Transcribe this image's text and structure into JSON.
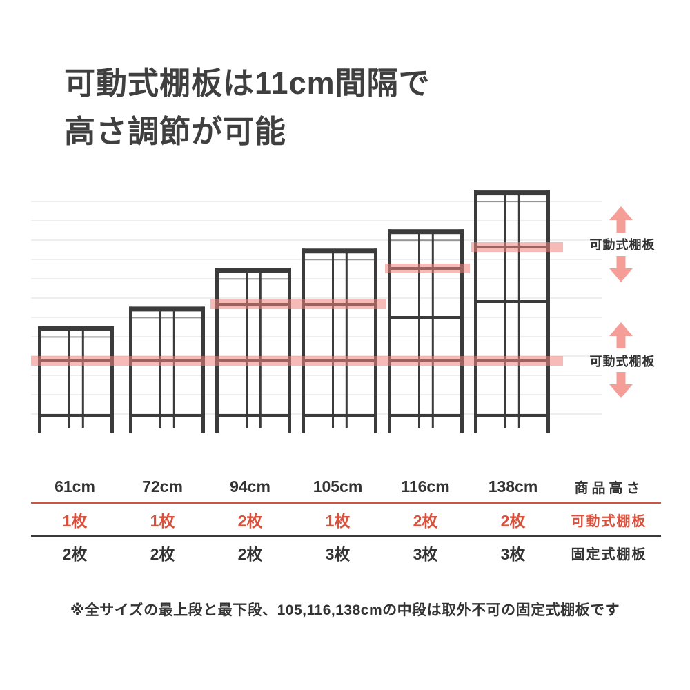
{
  "title": {
    "line1": "可動式棚板は11cm間隔で",
    "line2": "高さ調節が可能"
  },
  "diagram": {
    "annotations": {
      "top_label": "可動式棚板",
      "bottom_label": "可動式棚板"
    },
    "shelves": [
      {
        "height_cm": 61,
        "label": "61cm"
      },
      {
        "height_cm": 72,
        "label": "72cm"
      },
      {
        "height_cm": 94,
        "label": "94cm"
      },
      {
        "height_cm": 105,
        "label": "105cm"
      },
      {
        "height_cm": 116,
        "label": "116cm"
      },
      {
        "height_cm": 138,
        "label": "138cm"
      }
    ],
    "interval_cm": 11,
    "colors": {
      "frame": "#3b3b3b",
      "highlight": "#ef837b",
      "arrow": "#f59d97",
      "gridline": "#dedede"
    }
  },
  "table": {
    "height_row": {
      "header": "商品高さ",
      "values": [
        "61cm",
        "72cm",
        "94cm",
        "105cm",
        "116cm",
        "138cm"
      ]
    },
    "movable_row": {
      "header": "可動式棚板",
      "values": [
        "1枚",
        "1枚",
        "2枚",
        "1枚",
        "2枚",
        "2枚"
      ]
    },
    "fixed_row": {
      "header": "固定式棚板",
      "values": [
        "2枚",
        "2枚",
        "2枚",
        "3枚",
        "3枚",
        "3枚"
      ]
    },
    "movable_color": "#d9513d"
  },
  "footnote": "※全サイズの最上段と最下段、105,116,138cmの中段は取外不可の固定式棚板です"
}
